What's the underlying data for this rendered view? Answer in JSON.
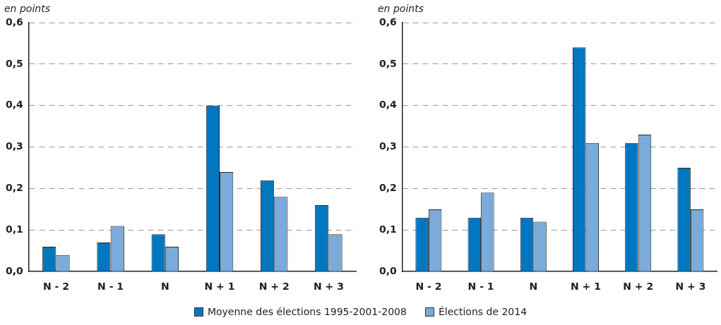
{
  "chart_data": [
    {
      "type": "bar",
      "ylabel": "en points",
      "categories": [
        "N - 2",
        "N - 1",
        "N",
        "N + 1",
        "N + 2",
        "N + 3"
      ],
      "series": [
        {
          "name": "Moyenne des élections 1995-2001-2008",
          "color": "#0077c0",
          "values": [
            0.06,
            0.07,
            0.09,
            0.4,
            0.22,
            0.16
          ]
        },
        {
          "name": "Élections de 2014",
          "color": "#7aabda",
          "values": [
            0.04,
            0.11,
            0.06,
            0.24,
            0.18,
            0.09
          ]
        }
      ],
      "ylim": [
        0,
        0.6
      ],
      "yticks": [
        {
          "value": 0,
          "label": "0,0"
        },
        {
          "value": 0.1,
          "label": "0,1"
        },
        {
          "value": 0.2,
          "label": "0,2"
        },
        {
          "value": 0.3,
          "label": "0,3"
        },
        {
          "value": 0.4,
          "label": "0,4"
        },
        {
          "value": 0.5,
          "label": "0,5"
        },
        {
          "value": 0.6,
          "label": "0,6"
        }
      ],
      "grid": "y",
      "line_style": "dashed",
      "legend": "bottom"
    },
    {
      "type": "bar",
      "ylabel": "en points",
      "categories": [
        "N - 2",
        "N - 1",
        "N",
        "N + 1",
        "N + 2",
        "N + 3"
      ],
      "series": [
        {
          "color": "#0077c0",
          "values": [
            0.13,
            0.13,
            0.13,
            0.54,
            0.31,
            0.25
          ]
        },
        {
          "color": "#7aabda",
          "values": [
            0.15,
            0.19,
            0.12,
            0.31,
            0.33,
            0.15
          ]
        }
      ],
      "ylim": [
        0,
        0.6
      ],
      "yticks": [
        {
          "value": 0,
          "label": "0,0"
        },
        {
          "value": 0.1,
          "label": "0,1"
        },
        {
          "value": 0.2,
          "label": "0,2"
        },
        {
          "value": 0.3,
          "label": "0,3"
        },
        {
          "value": 0.4,
          "label": "0,4"
        },
        {
          "value": 0.5,
          "label": "0,5"
        },
        {
          "value": 0.6,
          "label": "0,6"
        }
      ],
      "grid": "y",
      "line_style": "dashed"
    }
  ]
}
